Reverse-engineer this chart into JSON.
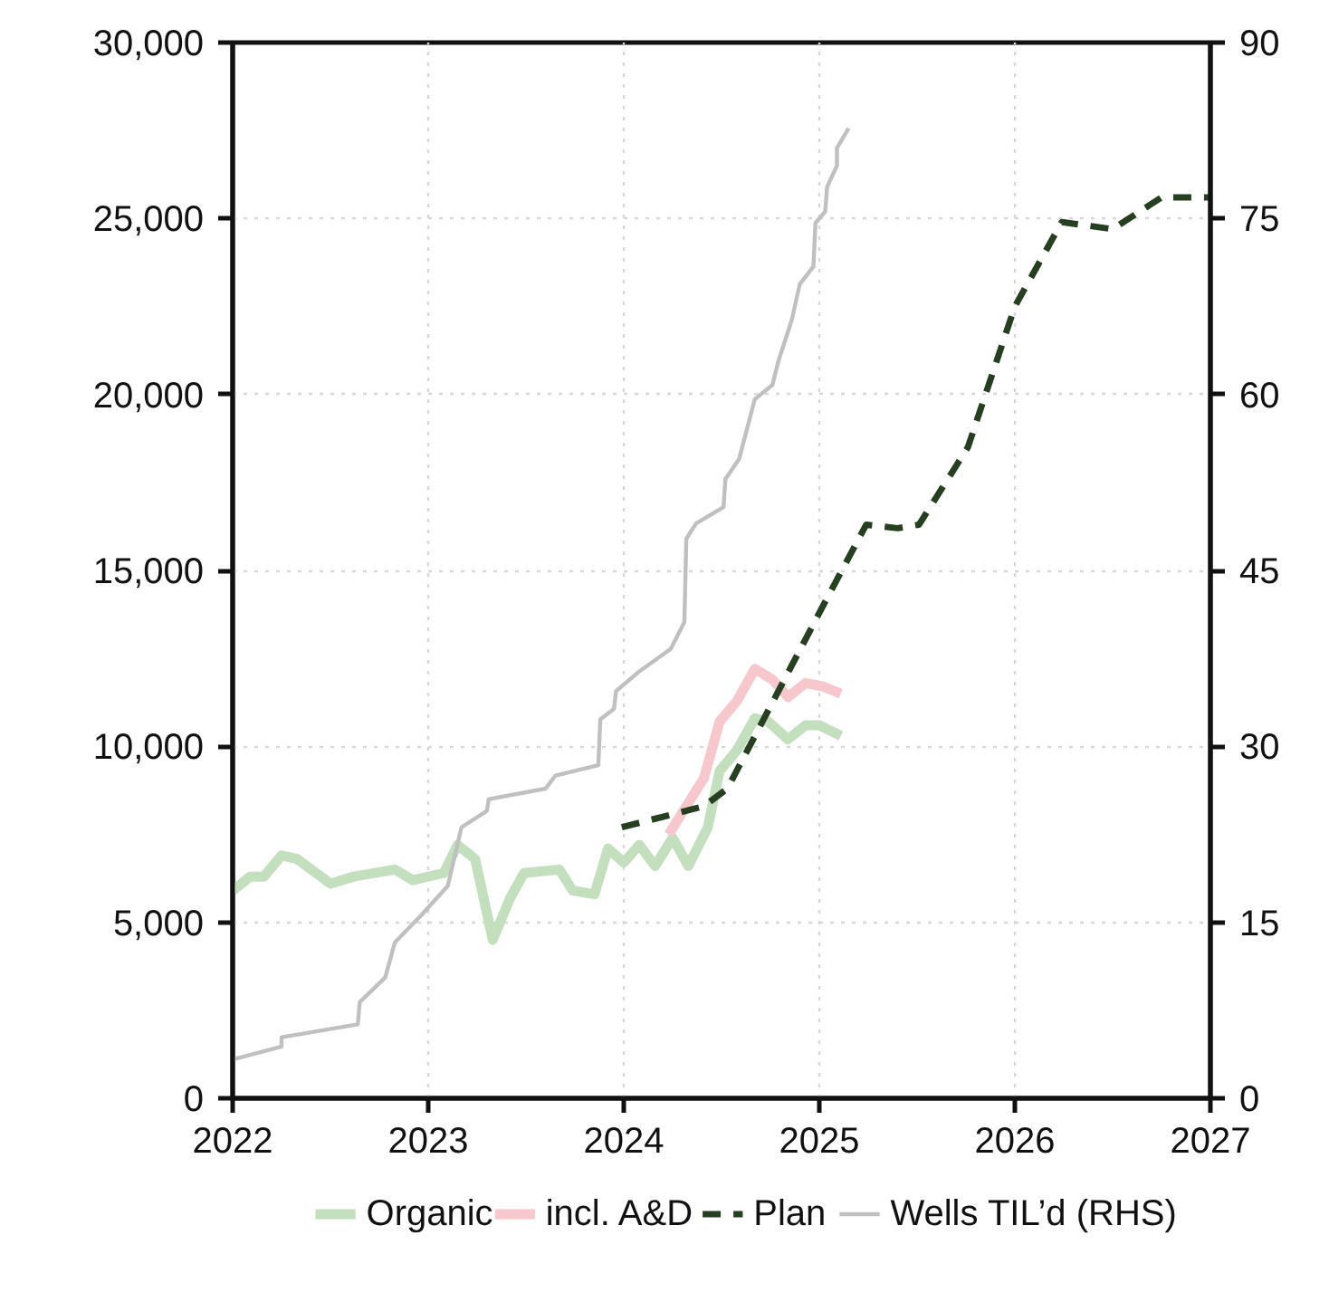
{
  "chart_data": {
    "type": "line",
    "xlim": [
      2022,
      2027
    ],
    "xticks": [
      2022,
      2023,
      2024,
      2025,
      2026,
      2027
    ],
    "ylim": [
      0,
      30000
    ],
    "yticks": [
      0,
      {
        "value": 5000,
        "label": "5,000"
      },
      {
        "value": 10000,
        "label": "10,000"
      },
      {
        "value": 15000,
        "label": "15,000"
      },
      {
        "value": 20000,
        "label": "20,000"
      },
      {
        "value": 25000,
        "label": "25,000"
      },
      {
        "value": 30000,
        "label": "30,000"
      }
    ],
    "y2lim": [
      0,
      90
    ],
    "y2ticks": [
      0,
      15,
      30,
      45,
      60,
      75,
      90
    ],
    "grid": true,
    "legend": "bottom",
    "marker": "none",
    "series": [
      {
        "name": "Organic",
        "color": "#c3dfbd",
        "line_style": "solid",
        "x": [
          2022.0,
          2022.09,
          2022.16,
          2022.25,
          2022.33,
          2022.5,
          2022.62,
          2022.83,
          2022.92,
          2023.08,
          2023.15,
          2023.24,
          2023.33,
          2023.42,
          2023.49,
          2023.67,
          2023.74,
          2023.85,
          2023.92,
          2024.0,
          2024.08,
          2024.16,
          2024.25,
          2024.33,
          2024.43,
          2024.49,
          2024.58,
          2024.67,
          2024.74,
          2024.84,
          2024.93,
          2025.0,
          2025.11
        ],
        "values": [
          5900,
          6300,
          6300,
          6900,
          6800,
          6100,
          6300,
          6500,
          6200,
          6400,
          7200,
          6800,
          4500,
          5700,
          6400,
          6500,
          5900,
          5800,
          7100,
          6700,
          7200,
          6600,
          7400,
          6600,
          7700,
          9300,
          9900,
          10800,
          10700,
          10200,
          10600,
          10600,
          10300
        ]
      },
      {
        "name": "incl. A&D",
        "color": "#f6c8ce",
        "line_style": "solid",
        "x": [
          2024.23,
          2024.32,
          2024.41,
          2024.49,
          2024.58,
          2024.67,
          2024.76,
          2024.84,
          2024.93,
          2025.02,
          2025.11
        ],
        "values": [
          7500,
          8300,
          9100,
          10700,
          11300,
          12200,
          11900,
          11400,
          11800,
          11700,
          11500
        ]
      },
      {
        "name": "Plan",
        "color": "#263f20",
        "line_style": "dashed",
        "x": [
          2023.99,
          2024.41,
          2024.53,
          2025.01,
          2025.24,
          2025.4,
          2025.51,
          2025.76,
          2026.0,
          2026.24,
          2026.5,
          2026.75,
          2027.0
        ],
        "values": [
          7700,
          8300,
          8800,
          13900,
          16300,
          16200,
          16300,
          18500,
          22500,
          24900,
          24700,
          25600,
          25600
        ]
      },
      {
        "name": "Wells TIL’d (RHS)",
        "color": "#c0c0c0",
        "line_style": "solid",
        "axis": "y2",
        "x": [
          2022.0,
          2022.0,
          2022.25,
          2022.25,
          2022.64,
          2022.65,
          2022.78,
          2022.83,
          2022.97,
          2023.1,
          2023.17,
          2023.3,
          2023.31,
          2023.6,
          2023.65,
          2023.87,
          2023.88,
          2023.95,
          2023.96,
          2024.08,
          2024.24,
          2024.31,
          2024.32,
          2024.37,
          2024.51,
          2024.52,
          2024.59,
          2024.67,
          2024.76,
          2024.79,
          2024.86,
          2024.9,
          2024.97,
          2024.98,
          2025.03,
          2025.04,
          2025.09,
          2025.09,
          2025.15
        ],
        "values": [
          0,
          3.3,
          4.4,
          5.2,
          6.3,
          8.2,
          10.3,
          13.3,
          15.7,
          18.1,
          23.1,
          24.5,
          25.5,
          26.4,
          27.5,
          28.4,
          32.3,
          33.2,
          34.7,
          36.4,
          38.3,
          40.6,
          47.7,
          49.0,
          50.4,
          52.8,
          54.5,
          59.6,
          60.8,
          62.8,
          66.4,
          69.4,
          70.9,
          74.6,
          75.6,
          77.7,
          79.5,
          81.0,
          82.7
        ]
      }
    ]
  }
}
